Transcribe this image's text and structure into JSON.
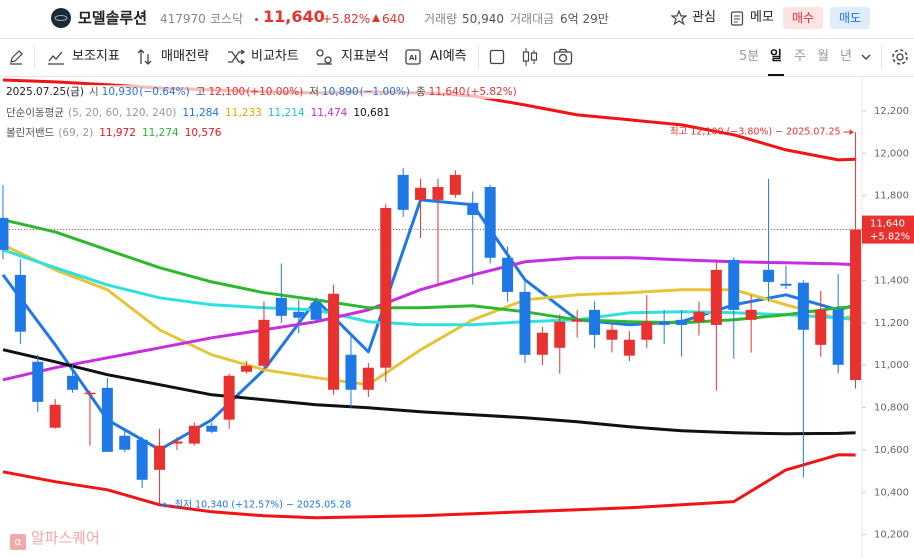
{
  "header": {
    "name": "모델솔루션",
    "code": "417970",
    "market": "코스닥",
    "price": "11,640",
    "change_pct": "+5.82%",
    "change": "640",
    "volume_label": "거래량",
    "volume": "50,940",
    "amount_label": "거래대금",
    "amount": "6억 29만",
    "watch": "관심",
    "memo": "메모",
    "buy": "매수",
    "sell": "매도"
  },
  "toolbar": {
    "tools": [
      "보조지표",
      "매매전략",
      "비교차트",
      "지표분석",
      "AI예측"
    ],
    "periods": [
      "5분",
      "일",
      "주",
      "월",
      "년"
    ]
  },
  "info": {
    "date": "2025.07.25(금)",
    "items": [
      {
        "label": "시",
        "value": "10,930",
        "change": "(−0.64%)",
        "color": "#1e78e6"
      },
      {
        "label": "고",
        "value": "12,100",
        "change": "(+10.00%)",
        "color": "#e8322f"
      },
      {
        "label": "저",
        "value": "10,890",
        "change": "(−1.00%)",
        "color": "#1e78e6"
      },
      {
        "label": "종",
        "value": "11,640",
        "change": "(+5.82%)",
        "color": "#e8322f"
      }
    ]
  },
  "watermark": "알파스퀘어",
  "chart_data": {
    "type": "candlestick",
    "up_color": "#e8322f",
    "down_color": "#1e78e6",
    "xlim": [
      -0.17,
      49.37
    ],
    "ylim": [
      10090,
      12360
    ],
    "yticks": [
      {
        "value": 10200,
        "label": "10,200"
      },
      {
        "value": 10400,
        "label": "10,400"
      },
      {
        "value": 10600,
        "label": "10,600"
      },
      {
        "value": 10800,
        "label": "10,800"
      },
      {
        "value": 11000,
        "label": "11,000"
      },
      {
        "value": 11200,
        "label": "11,200"
      },
      {
        "value": 11400,
        "label": "11,400"
      },
      {
        "value": 11600,
        "label": "11,600"
      },
      {
        "value": 11800,
        "label": "11,800"
      },
      {
        "value": 12000,
        "label": "12,000"
      },
      {
        "value": 12200,
        "label": "12,200"
      }
    ],
    "open": [
      11695,
      11426,
      11016,
      10705,
      10950,
      10870,
      10893,
      10667,
      10648,
      10506,
      10630,
      10630,
      10714,
      10743,
      10969,
      10997,
      11318,
      11252,
      11294,
      10884,
      11049,
      10884,
      10988,
      11898,
      11780,
      11780,
      11804,
      11766,
      11841,
      11507,
      11346,
      11049,
      11082,
      11205,
      11261,
      11120,
      11045,
      11120,
      11205,
      11214,
      11205,
      11190,
      11497,
      11214,
      11450,
      11384,
      11389,
      11096,
      11261,
      10930
    ],
    "high": [
      11850,
      11500,
      11050,
      10840,
      11000,
      10880,
      10940,
      10700,
      10660,
      10700,
      10660,
      10730,
      10730,
      10960,
      11020,
      11300,
      11480,
      11310,
      11320,
      11380,
      11150,
      11010,
      11760,
      11930,
      11880,
      11880,
      11920,
      11820,
      11850,
      11560,
      11400,
      11180,
      11240,
      11260,
      11300,
      11200,
      11160,
      11330,
      11260,
      11260,
      11300,
      11500,
      11510,
      11330,
      11880,
      11470,
      11400,
      11350,
      11430,
      12100
    ],
    "low": [
      11500,
      11100,
      10780,
      10700,
      10870,
      10620,
      10591,
      10590,
      10420,
      10340,
      10600,
      10620,
      10680,
      10700,
      10960,
      10980,
      11200,
      11150,
      11200,
      10860,
      10800,
      10850,
      10920,
      11700,
      11600,
      11380,
      11790,
      11380,
      11480,
      11300,
      11010,
      11000,
      10960,
      11130,
      11080,
      11060,
      11020,
      11080,
      11100,
      11040,
      11140,
      10880,
      11030,
      11060,
      11300,
      11360,
      10470,
      11040,
      10960,
      10890
    ],
    "close": [
      11544,
      11158,
      10827,
      10813,
      10884,
      10870,
      10591,
      10601,
      10459,
      10620,
      10640,
      10714,
      10686,
      10950,
      10997,
      11214,
      11233,
      11224,
      11214,
      11337,
      10884,
      10988,
      11742,
      11733,
      11837,
      11841,
      11898,
      11709,
      11507,
      11346,
      11049,
      11153,
      11205,
      11215,
      11143,
      11167,
      11120,
      11205,
      11190,
      11190,
      11252,
      11450,
      11261,
      11261,
      11393,
      11375,
      11167,
      11261,
      11002,
      11640
    ],
    "line_x": [
      0,
      3,
      6,
      9,
      12,
      15,
      18,
      21,
      24,
      27,
      30,
      33,
      36,
      39,
      42,
      45,
      48,
      49
    ],
    "indicators": [
      {
        "name": "단순이동평균",
        "params": "(5, 20, 60, 120, 240)",
        "series": [
          {
            "color": "#1e78e6",
            "value_label": "11,284",
            "values": [
              11426,
              11096,
              10742,
              10601,
              10742,
              10978,
              11308,
              11063,
              11780,
              11757,
              11403,
              11214,
              11191,
              11205,
              11285,
              11332,
              11261,
              11284
            ]
          },
          {
            "color": "#e5c43a",
            "value_label": "11,233",
            "values": [
              11568,
              11450,
              11356,
              11167,
              11049,
              10978,
              10941,
              10908,
              11073,
              11214,
              11308,
              11332,
              11342,
              11356,
              11356,
              11285,
              11220,
              11233
            ]
          },
          {
            "color": "#2ee0e0",
            "value_label": "11,214",
            "values": [
              11544,
              11460,
              11379,
              11318,
              11285,
              11271,
              11261,
              11205,
              11191,
              11191,
              11205,
              11214,
              11247,
              11252,
              11247,
              11238,
              11224,
              11214
            ]
          },
          {
            "color": "#c72ee0",
            "value_label": "11,474",
            "values": [
              10931,
              10988,
              11035,
              11082,
              11129,
              11167,
              11205,
              11261,
              11356,
              11426,
              11488,
              11507,
              11507,
              11497,
              11488,
              11483,
              11478,
              11474
            ]
          },
          {
            "color": "#111111",
            "value_label": "10,681",
            "values": [
              11073,
              11016,
              10955,
              10908,
              10860,
              10837,
              10813,
              10799,
              10780,
              10766,
              10752,
              10733,
              10709,
              10691,
              10681,
              10676,
              10678,
              10681
            ]
          }
        ]
      },
      {
        "name": "볼린저밴드",
        "params": "(69, 2)",
        "series": [
          {
            "color": "#f01414",
            "value_label": "11,972",
            "values": [
              12346,
              12337,
              12323,
              12308,
              12299,
              12290,
              12285,
              12290,
              12285,
              12271,
              12228,
              12181,
              12158,
              12134,
              12087,
              12016,
              11969,
              11972
            ]
          },
          {
            "color": "#2eb82e",
            "value_label": "11,274",
            "values": [
              11686,
              11629,
              11544,
              11460,
              11393,
              11342,
              11308,
              11271,
              11271,
              11280,
              11252,
              11214,
              11205,
              11200,
              11214,
              11238,
              11271,
              11274
            ]
          },
          {
            "color": "#f01414",
            "value_label": "10,576",
            "values": [
              10497,
              10450,
              10412,
              10341,
              10308,
              10289,
              10280,
              10285,
              10289,
              10299,
              10308,
              10318,
              10327,
              10341,
              10356,
              10506,
              10577,
              10576
            ]
          }
        ]
      }
    ],
    "current": {
      "value": 11640,
      "label": "11,640",
      "change": "+5.82%"
    },
    "annotations": [
      {
        "kind": "high",
        "value": 12100,
        "text": "최고 12,100 (−3.80%) − 2025.07.25"
      },
      {
        "kind": "low",
        "value": 10340,
        "text": "최저 10,340 (+12.57%) − 2025.05.28"
      }
    ]
  }
}
